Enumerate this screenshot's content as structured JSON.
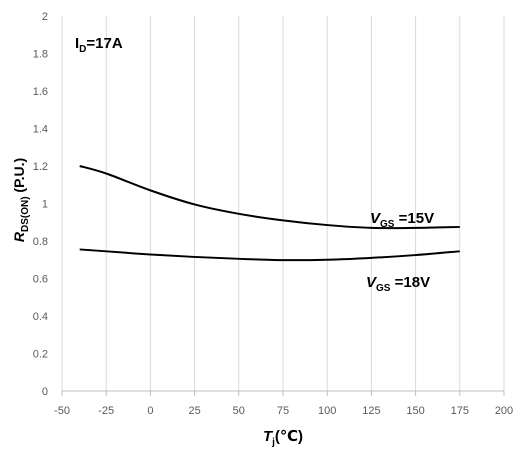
{
  "chart_data": {
    "type": "line",
    "annotation": "I<sub>D</sub>=17A",
    "annotation_main": "I",
    "annotation_sub": "D",
    "annotation_rest": "=17A",
    "xlabel_main": "T",
    "xlabel_sub": "j",
    "xlabel_rest": "(℃)",
    "ylabel_main": "R",
    "ylabel_sub": "DS(ON)",
    "ylabel_rest": " (P.U.)",
    "xlim": [
      -50,
      200
    ],
    "ylim": [
      0,
      2
    ],
    "x_ticks": [
      "-50",
      "-25",
      "0",
      "25",
      "50",
      "75",
      "100",
      "125",
      "150",
      "175",
      "200"
    ],
    "y_ticks": [
      "0",
      "0.2",
      "0.4",
      "0.6",
      "0.8",
      "1",
      "1.2",
      "1.4",
      "1.6",
      "1.8",
      "2"
    ],
    "x_tick_values": [
      -50,
      -25,
      0,
      25,
      50,
      75,
      100,
      125,
      150,
      175,
      200
    ],
    "y_tick_values": [
      0,
      0.2,
      0.4,
      0.6,
      0.8,
      1.0,
      1.2,
      1.4,
      1.6,
      1.8,
      2.0
    ],
    "grid": "vertical",
    "series": [
      {
        "label_main": "V",
        "label_sub": "GS",
        "label_rest": " =15V",
        "x": [
          -40,
          -25,
          0,
          25,
          50,
          75,
          100,
          125,
          150,
          175
        ],
        "y": [
          1.2,
          1.16,
          1.07,
          0.995,
          0.945,
          0.91,
          0.885,
          0.87,
          0.87,
          0.875
        ]
      },
      {
        "label_main": "V",
        "label_sub": "GS",
        "label_rest": " =18V",
        "x": [
          -40,
          -25,
          0,
          25,
          50,
          75,
          100,
          125,
          150,
          175
        ],
        "y": [
          0.755,
          0.745,
          0.728,
          0.715,
          0.705,
          0.698,
          0.7,
          0.71,
          0.725,
          0.745
        ]
      }
    ]
  }
}
